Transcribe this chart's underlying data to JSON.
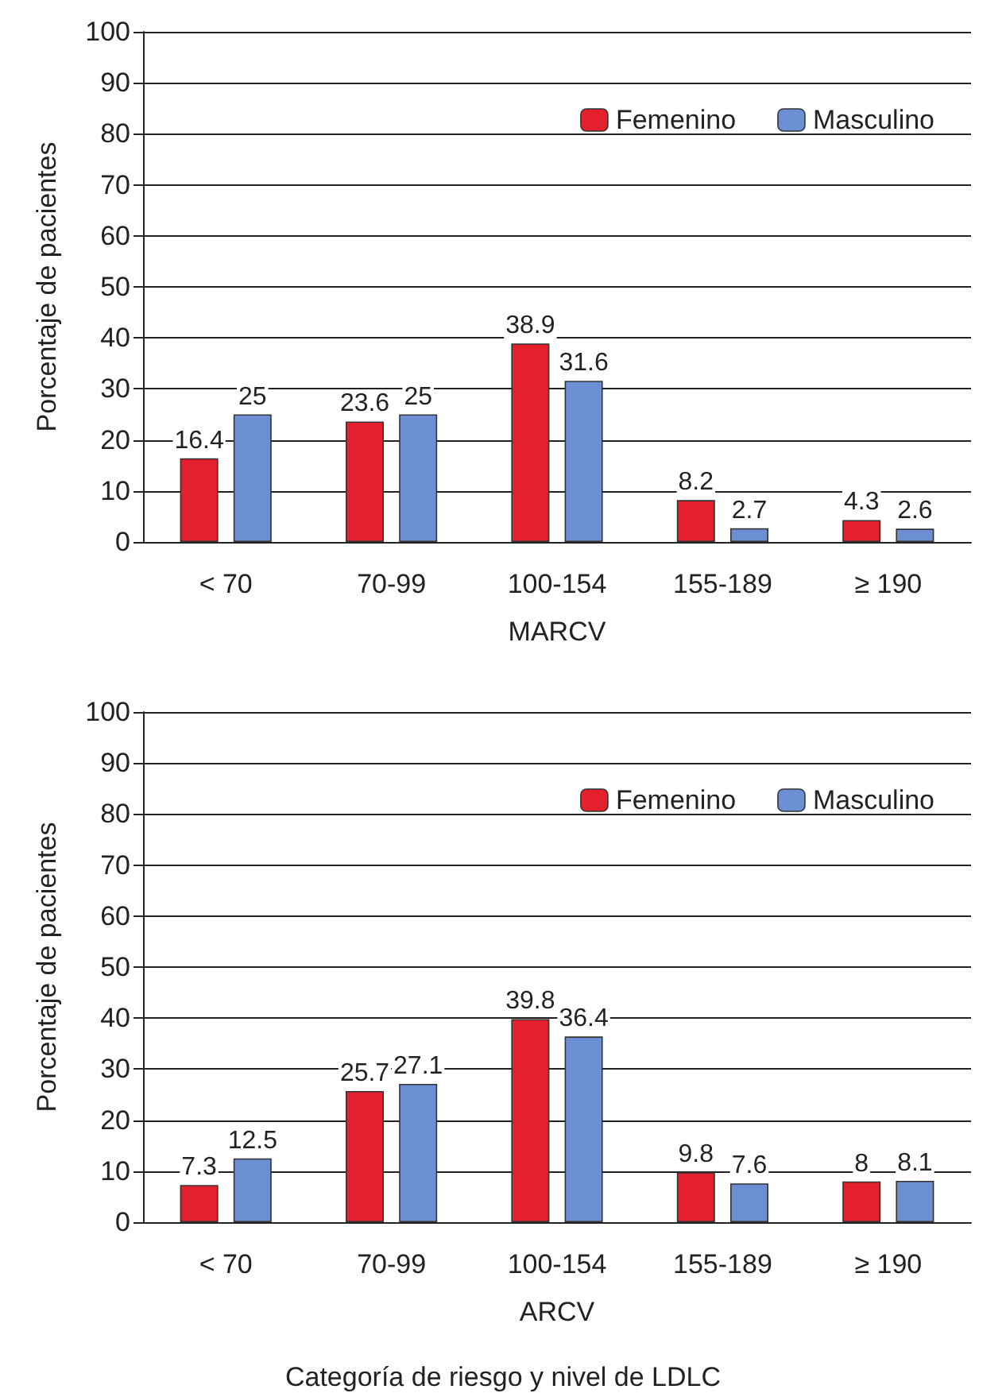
{
  "chart_data": [
    {
      "type": "bar",
      "xlabel": "MARCV",
      "ylabel": "Porcentaje de pacientes",
      "categories": [
        "< 70",
        "70-99",
        "100-154",
        "155-189",
        "≥ 190"
      ],
      "series": [
        {
          "name": "Femenino",
          "color": "#e3202b",
          "values": [
            16.4,
            23.6,
            38.9,
            8.2,
            4.3
          ]
        },
        {
          "name": "Masculino",
          "color": "#6b8fd2",
          "values": [
            25,
            25,
            31.6,
            2.7,
            2.6
          ]
        }
      ],
      "ylim": [
        0,
        100
      ],
      "yticks": [
        0,
        10,
        20,
        30,
        40,
        50,
        60,
        70,
        80,
        90,
        100
      ],
      "grid": "y",
      "legend": "top right",
      "data_labels": true
    },
    {
      "type": "bar",
      "xlabel": "ARCV",
      "ylabel": "Porcentaje de pacientes",
      "categories": [
        "< 70",
        "70-99",
        "100-154",
        "155-189",
        "≥ 190"
      ],
      "series": [
        {
          "name": "Femenino",
          "color": "#e3202b",
          "values": [
            7.3,
            25.7,
            39.8,
            9.8,
            8
          ]
        },
        {
          "name": "Masculino",
          "color": "#6b8fd2",
          "values": [
            12.5,
            27.1,
            36.4,
            7.6,
            8.1
          ]
        }
      ],
      "ylim": [
        0,
        100
      ],
      "yticks": [
        0,
        10,
        20,
        30,
        40,
        50,
        60,
        70,
        80,
        90,
        100
      ],
      "grid": "y",
      "legend": "top right",
      "data_labels": true,
      "annotations": [
        "Categoría de riesgo y nivel de LDLC"
      ]
    }
  ]
}
